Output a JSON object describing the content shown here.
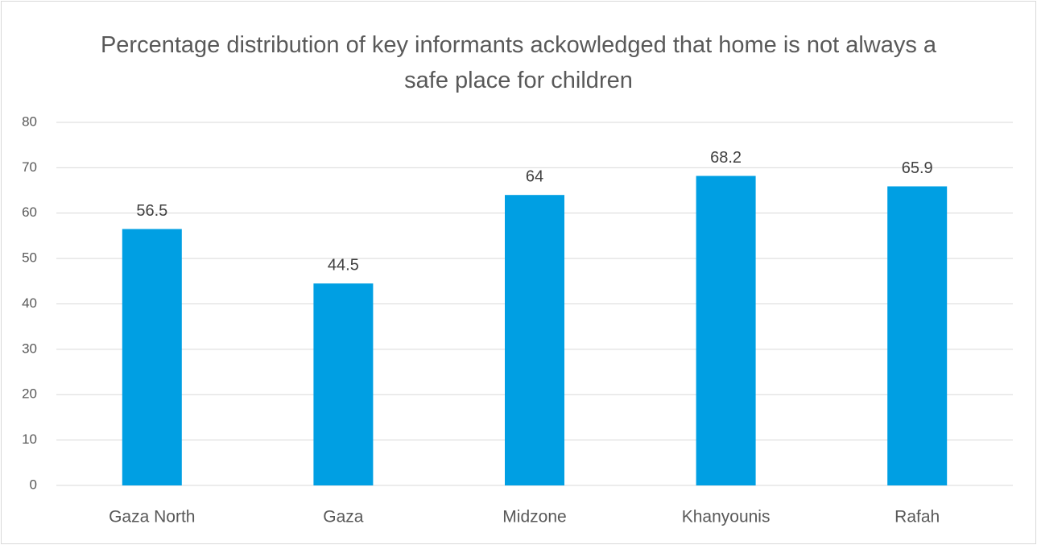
{
  "chart_data": {
    "type": "bar",
    "title": "Percentage distribution of key informants ackowledged that home is not always a safe place for children",
    "categories": [
      "Gaza North",
      "Gaza",
      "Midzone",
      "Khanyounis",
      "Rafah"
    ],
    "values": [
      56.5,
      44.5,
      64,
      68.2,
      65.9
    ],
    "color": "#009fe3",
    "ylim": [
      0,
      80
    ],
    "yticks": [
      0,
      10,
      20,
      30,
      40,
      50,
      60,
      70,
      80
    ],
    "grid": true
  }
}
